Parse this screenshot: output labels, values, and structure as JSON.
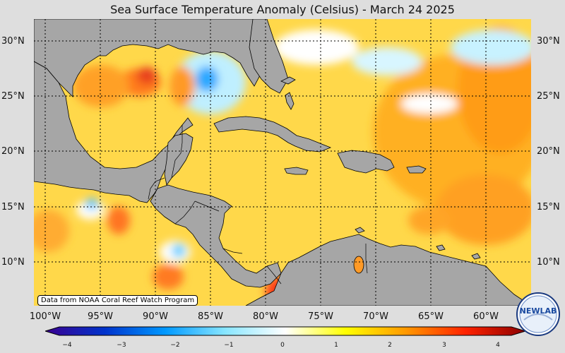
{
  "title": "Sea Surface Temperature Anomaly (Celsius) - March 24 2025",
  "credit": "Data from NOAA Coral Reef Watch Program",
  "lat_labels": [
    "30°N",
    "25°N",
    "20°N",
    "15°N",
    "10°N"
  ],
  "lon_labels": [
    "100°W",
    "95°W",
    "90°W",
    "85°W",
    "80°W",
    "75°W",
    "70°W",
    "65°W",
    "60°W"
  ],
  "colorbar": {
    "ticks": [
      "−4",
      "−3",
      "−2",
      "−1",
      "0",
      "1",
      "2",
      "3",
      "4"
    ],
    "range": [
      -4,
      4
    ],
    "colors": [
      "#3a0090",
      "#0033cc",
      "#0099ff",
      "#88e6ff",
      "#ffffff",
      "#ffff00",
      "#ff9900",
      "#ff2200",
      "#8b0000"
    ]
  },
  "logo": {
    "text": "NEWLAB"
  },
  "colors": {
    "land": "#a6a6a6",
    "background": "#dedede",
    "ocean_base": "#ffd84a"
  }
}
